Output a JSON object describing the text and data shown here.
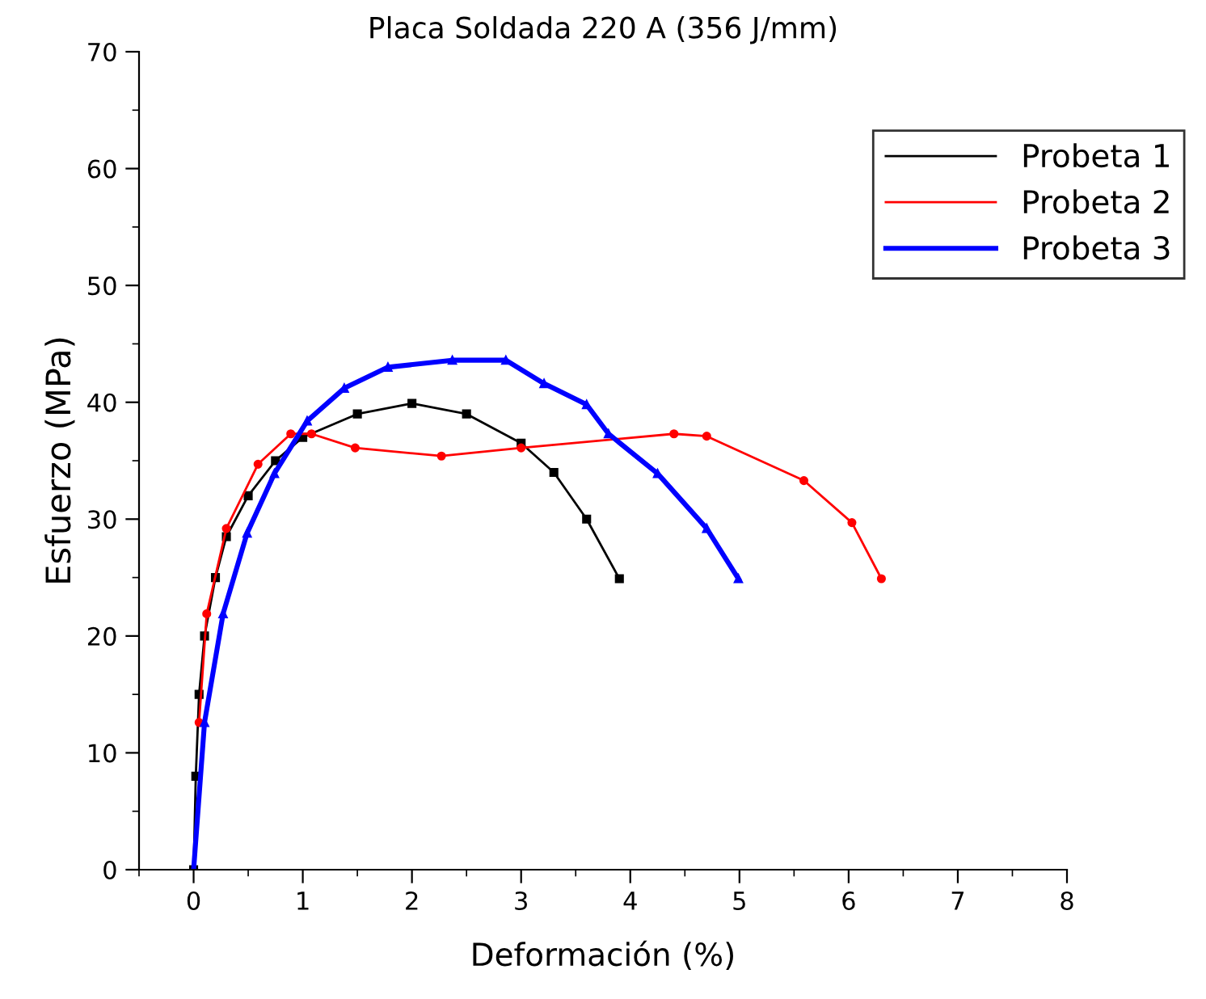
{
  "chart_data": {
    "type": "line",
    "title": "Placa Soldada 220 A (356 J/mm)",
    "xlabel": "Deformación (%)",
    "ylabel": "Esfuerzo (MPa)",
    "xlim": [
      -0.5,
      8
    ],
    "xticks": [
      0,
      1,
      2,
      3,
      4,
      5,
      6,
      7,
      8
    ],
    "ylim": [
      0,
      70
    ],
    "yticks": [
      0,
      10,
      20,
      30,
      40,
      50,
      60,
      70
    ],
    "grid": false,
    "legend": "top right",
    "series": [
      {
        "name": "Probeta 1",
        "color": "#000000",
        "marker": "square",
        "x": [
          0,
          0.02,
          0.05,
          0.1,
          0.2,
          0.3,
          0.5,
          0.75,
          1,
          1.5,
          2,
          2.5,
          3,
          3.3,
          3.6,
          3.9
        ],
        "values": [
          0,
          8,
          15,
          20,
          25,
          28.5,
          32,
          35,
          37,
          39,
          39.9,
          39,
          36.5,
          34,
          30,
          24.9
        ]
      },
      {
        "name": "Probeta 2",
        "color": "#ff0000",
        "marker": "circle",
        "x": [
          0.05,
          0.12,
          0.3,
          0.59,
          0.89,
          1.08,
          1.48,
          2.27,
          3.0,
          4.4,
          4.7,
          5.59,
          6.03,
          6.3
        ],
        "values": [
          12.6,
          21.9,
          29.2,
          34.7,
          37.3,
          37.3,
          36.1,
          35.4,
          36.1,
          37.3,
          37.1,
          33.3,
          29.7,
          24.9
        ]
      },
      {
        "name": "Probeta 3",
        "color": "#0000ff",
        "marker": "triangle",
        "x": [
          0,
          0.1,
          0.27,
          0.49,
          0.74,
          1.04,
          1.38,
          1.78,
          2.37,
          2.86,
          3.21,
          3.6,
          3.8,
          4.25,
          4.7,
          4.99
        ],
        "values": [
          0,
          12.6,
          21.9,
          28.8,
          33.9,
          38.4,
          41.2,
          43,
          43.6,
          43.6,
          41.6,
          39.8,
          37.3,
          33.9,
          29.2,
          24.9
        ]
      }
    ]
  }
}
